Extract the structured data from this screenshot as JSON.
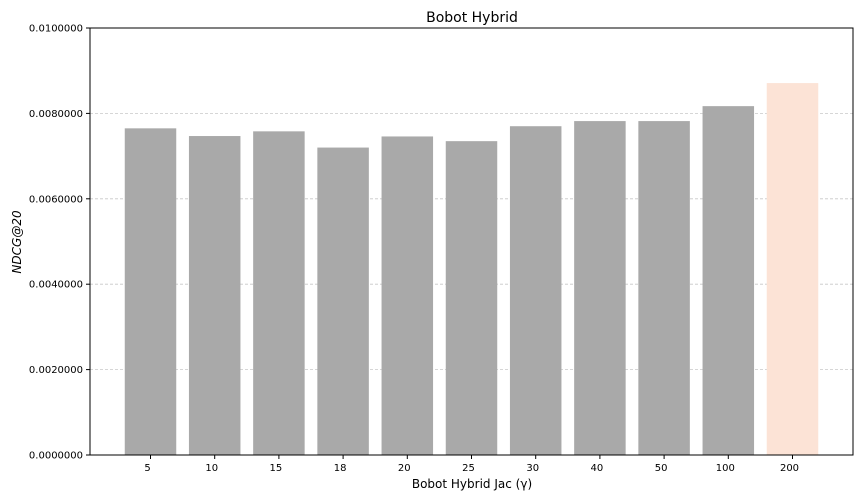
{
  "chart_data": {
    "type": "bar",
    "title": "Bobot Hybrid",
    "xlabel": "Bobot Hybrid Jac (γ)",
    "ylabel": "NDCG@20",
    "categories": [
      "5",
      "10",
      "15",
      "18",
      "20",
      "25",
      "30",
      "40",
      "50",
      "100",
      "200"
    ],
    "values": [
      0.00765,
      0.00747,
      0.00758,
      0.0072,
      0.00746,
      0.00735,
      0.0077,
      0.00782,
      0.00782,
      0.00817,
      0.00871
    ],
    "ylim": [
      0,
      0.01
    ],
    "yticks": [
      "0.0000000",
      "0.0020000",
      "0.0040000",
      "0.0060000",
      "0.0080000",
      "0.0100000"
    ],
    "grid": "horizontal dashed",
    "colors": {
      "bar": "#a9a9a9",
      "highlight_bar": "#fce3d6",
      "grid": "#c8c8c8",
      "axis": "#000000"
    },
    "highlight_index": 10
  }
}
